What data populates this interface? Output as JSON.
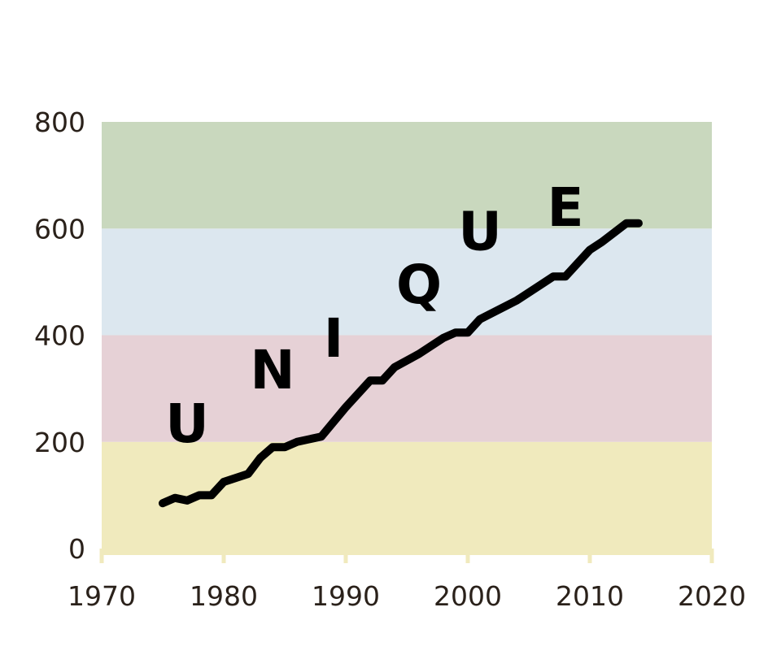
{
  "chart_data": {
    "type": "line",
    "title": "",
    "xlabel": "",
    "ylabel": "",
    "xlim": [
      1970,
      2020
    ],
    "ylim": [
      0,
      800
    ],
    "x_ticks": [
      1970,
      1980,
      1990,
      2000,
      2010,
      2020
    ],
    "y_ticks": [
      0,
      200,
      400,
      600,
      800
    ],
    "grid": false,
    "legend": "none",
    "bands": [
      {
        "from": 0,
        "to": 200,
        "color": "#f0eabd"
      },
      {
        "from": 200,
        "to": 400,
        "color": "#e6d1d6"
      },
      {
        "from": 400,
        "to": 600,
        "color": "#dce7ef"
      },
      {
        "from": 600,
        "to": 800,
        "color": "#c9d8be"
      }
    ],
    "line_color": "#000000",
    "annotation_letters": [
      {
        "text": "U",
        "x": 1977,
        "y": 200
      },
      {
        "text": "N",
        "x": 1984,
        "y": 300
      },
      {
        "text": "I",
        "x": 1989,
        "y": 360
      },
      {
        "text": "Q",
        "x": 1996,
        "y": 460
      },
      {
        "text": "U",
        "x": 2001,
        "y": 560
      },
      {
        "text": "E",
        "x": 2008,
        "y": 605
      }
    ],
    "series": [
      {
        "x": [
          1975,
          1976,
          1977,
          1978,
          1979,
          1980,
          1982,
          1983,
          1984,
          1985,
          1986,
          1988,
          1990,
          1992,
          1993,
          1994,
          1996,
          1998,
          1999,
          2000,
          2001,
          2004,
          2006,
          2007,
          2008,
          2010,
          2011,
          2013,
          2014
        ],
        "values": [
          85,
          95,
          90,
          100,
          100,
          125,
          140,
          170,
          190,
          190,
          200,
          210,
          265,
          315,
          315,
          340,
          365,
          395,
          405,
          405,
          430,
          465,
          495,
          510,
          510,
          560,
          575,
          610,
          610
        ]
      }
    ]
  }
}
